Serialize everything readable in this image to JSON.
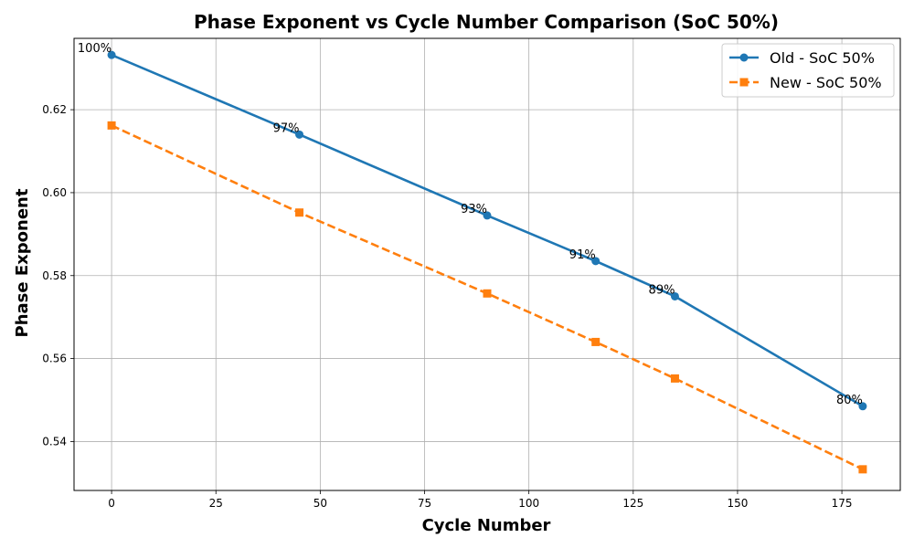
{
  "chart_data": {
    "type": "line",
    "title": "Phase Exponent vs Cycle Number Comparison (SoC 50%)",
    "xlabel": "Cycle Number",
    "ylabel": "Phase Exponent",
    "xlim": [
      -9,
      189
    ],
    "ylim": [
      0.5282,
      0.6372
    ],
    "xticks": [
      0,
      25,
      50,
      75,
      100,
      125,
      150,
      175
    ],
    "yticks": [
      0.54,
      0.56,
      0.58,
      0.6,
      0.62
    ],
    "xtick_labels": [
      "0",
      "25",
      "50",
      "75",
      "100",
      "125",
      "150",
      "175"
    ],
    "ytick_labels": [
      "0.54",
      "0.56",
      "0.58",
      "0.60",
      "0.62"
    ],
    "grid": true,
    "legend_position": "top-right",
    "series": [
      {
        "name": "Old - SoC 50%",
        "color": "#1f77b4",
        "line_style": "solid",
        "marker": "circle",
        "x": [
          0,
          45,
          90,
          116,
          135,
          180
        ],
        "y": [
          0.6332,
          0.614,
          0.5945,
          0.5835,
          0.575,
          0.5485
        ]
      },
      {
        "name": "New - SoC 50%",
        "color": "#ff7f0e",
        "line_style": "dashed",
        "marker": "square",
        "x": [
          0,
          45,
          90,
          116,
          135,
          180
        ],
        "y": [
          0.6162,
          0.5952,
          0.5757,
          0.564,
          0.5552,
          0.5333
        ]
      }
    ],
    "annotations": [
      {
        "text": "100%",
        "x": 0,
        "y": 0.6332
      },
      {
        "text": "97%",
        "x": 45,
        "y": 0.614
      },
      {
        "text": "93%",
        "x": 90,
        "y": 0.5945
      },
      {
        "text": "91%",
        "x": 116,
        "y": 0.5835
      },
      {
        "text": "89%",
        "x": 135,
        "y": 0.575
      },
      {
        "text": "80%",
        "x": 180,
        "y": 0.5485
      }
    ]
  }
}
